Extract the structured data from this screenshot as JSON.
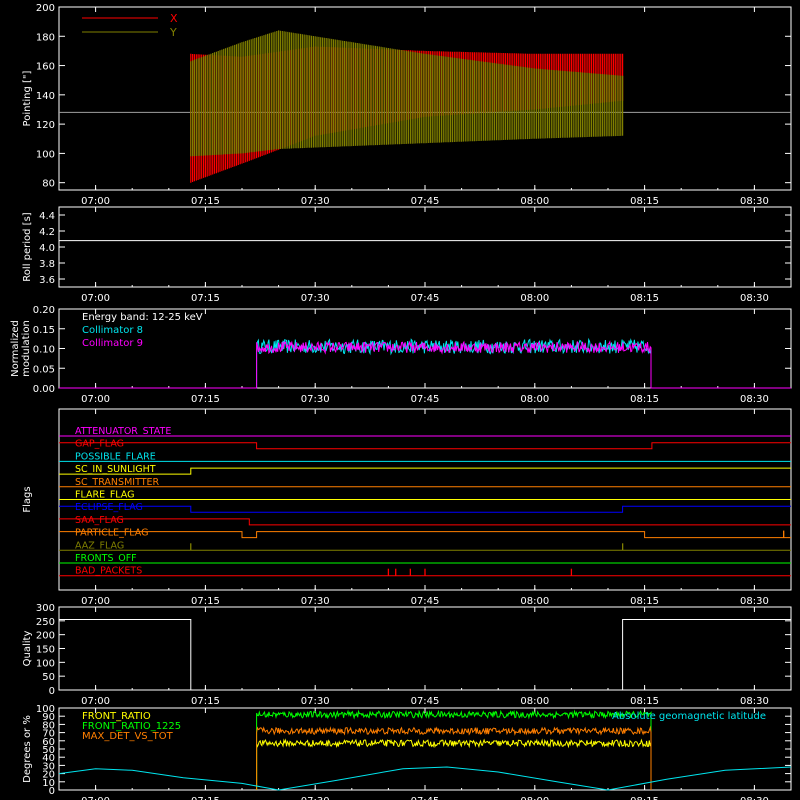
{
  "colors": {
    "white": "#ffffff",
    "red": "#ff0000",
    "olive": "#808000",
    "cyan": "#00e5ee",
    "magenta": "#ff00ff",
    "orange": "#ff7f00",
    "yellow": "#ffff00",
    "green": "#00ff00",
    "blue": "#0000ff",
    "gray": "#a0a0a0"
  },
  "chart_data": [
    {
      "id": "pointing",
      "type": "line",
      "ylabel": "Pointing [\"]",
      "ylim": [
        75,
        200
      ],
      "yticks": [
        80,
        100,
        120,
        140,
        160,
        180,
        200
      ],
      "x_ticks": [
        "07:00",
        "07:15",
        "07:30",
        "07:45",
        "08:00",
        "08:15",
        "08:30"
      ],
      "reference_line": 128,
      "data_start": "07:13",
      "data_end": "08:12",
      "series": [
        {
          "name": "X",
          "color": "red",
          "envelope": [
            {
              "t": "07:13",
              "lo": 80,
              "hi": 168
            },
            {
              "t": "07:20",
              "lo": 93,
              "hi": 166
            },
            {
              "t": "07:30",
              "lo": 112,
              "hi": 173
            },
            {
              "t": "07:45",
              "lo": 125,
              "hi": 170
            },
            {
              "t": "08:00",
              "lo": 130,
              "hi": 168
            },
            {
              "t": "08:12",
              "lo": 136,
              "hi": 168
            }
          ]
        },
        {
          "name": "Y",
          "color": "olive",
          "envelope": [
            {
              "t": "07:13",
              "lo": 98,
              "hi": 163
            },
            {
              "t": "07:20",
              "lo": 100,
              "hi": 176
            },
            {
              "t": "07:25",
              "lo": 103,
              "hi": 184
            },
            {
              "t": "07:45",
              "lo": 107,
              "hi": 168
            },
            {
              "t": "08:00",
              "lo": 110,
              "hi": 158
            },
            {
              "t": "08:12",
              "lo": 112,
              "hi": 153
            }
          ]
        }
      ]
    },
    {
      "id": "roll",
      "type": "line",
      "ylabel": "Roll period [s]",
      "ylim": [
        3.5,
        4.5
      ],
      "yticks": [
        3.6,
        3.8,
        4.0,
        4.2,
        4.4
      ],
      "x_ticks": [
        "07:00",
        "07:15",
        "07:30",
        "07:45",
        "08:00",
        "08:15",
        "08:30"
      ],
      "series": [
        {
          "name": "",
          "color": "white",
          "value": 4.08
        }
      ]
    },
    {
      "id": "modulation",
      "type": "line",
      "ylabel": "Normalized modulation",
      "ylim": [
        0,
        0.2
      ],
      "yticks": [
        0.0,
        0.05,
        0.1,
        0.15,
        0.2
      ],
      "x_ticks": [
        "07:00",
        "07:15",
        "07:30",
        "07:45",
        "08:00",
        "08:15",
        "08:30"
      ],
      "annotation": "Energy band: 12-25 keV",
      "data_start": "07:22",
      "data_end": "08:16",
      "series": [
        {
          "name": "Collimator 8",
          "color": "cyan",
          "mean": 0.105,
          "spread": 0.018
        },
        {
          "name": "Collimator 9",
          "color": "magenta",
          "mean": 0.103,
          "spread": 0.014
        }
      ]
    },
    {
      "id": "flags",
      "type": "line",
      "ylabel": "Flags",
      "x_ticks": [
        "07:00",
        "07:15",
        "07:30",
        "07:45",
        "08:00",
        "08:15",
        "08:30"
      ],
      "series": [
        {
          "name": "ATTENUATOR_STATE",
          "color": "magenta",
          "steps": []
        },
        {
          "name": "GAP_FLAG",
          "color": "red",
          "steps": [
            [
              "07:22",
              0
            ],
            [
              "08:16",
              1
            ]
          ],
          "initial": 1
        },
        {
          "name": "POSSIBLE_FLARE",
          "color": "cyan",
          "steps": []
        },
        {
          "name": "SC_IN_SUNLIGHT",
          "color": "yellow",
          "steps": [
            [
              "07:13",
              1
            ]
          ],
          "initial": 0
        },
        {
          "name": "SC_TRANSMITTER",
          "color": "orange",
          "steps": []
        },
        {
          "name": "FLARE_FLAG",
          "color": "yellow",
          "steps": []
        },
        {
          "name": "ECLIPSE_FLAG",
          "color": "blue",
          "steps": [
            [
              "07:13",
              0
            ],
            [
              "08:12",
              1
            ]
          ],
          "initial": 1
        },
        {
          "name": "SAA_FLAG",
          "color": "red",
          "steps": [
            [
              "07:21",
              0
            ]
          ],
          "initial": 1
        },
        {
          "name": "PARTICLE_FLAG",
          "color": "orange",
          "steps": [
            [
              "07:20",
              0
            ],
            [
              "07:22",
              1
            ],
            [
              "08:15",
              0
            ]
          ],
          "initial": 1,
          "spikes": [
            "08:34"
          ]
        },
        {
          "name": "AAZ_FLAG",
          "color": "olive",
          "steps": [],
          "spikes": [
            "07:13",
            "08:12"
          ]
        },
        {
          "name": "FRONTS_OFF",
          "color": "green",
          "steps": []
        },
        {
          "name": "BAD_PACKETS",
          "color": "red",
          "steps": [],
          "spikes": [
            "07:40",
            "07:41",
            "07:43",
            "07:45",
            "08:05"
          ]
        }
      ]
    },
    {
      "id": "quality",
      "type": "line",
      "ylabel": "Quality",
      "ylim": [
        0,
        300
      ],
      "yticks": [
        0,
        50,
        100,
        150,
        200,
        250,
        300
      ],
      "x_ticks": [
        "07:00",
        "07:15",
        "07:30",
        "07:45",
        "08:00",
        "08:15",
        "08:30"
      ],
      "series": [
        {
          "name": "",
          "color": "white",
          "steps": [
            [
              "06:55",
              255
            ],
            [
              "07:13",
              0
            ],
            [
              "08:12",
              255
            ]
          ]
        }
      ]
    },
    {
      "id": "latitude",
      "type": "line",
      "ylabel": "Degrees or %",
      "ylim": [
        0,
        100
      ],
      "yticks": [
        0,
        10,
        20,
        30,
        40,
        50,
        60,
        70,
        80,
        90,
        100
      ],
      "x_ticks": [
        "07:00",
        "07:15",
        "07:30",
        "07:45",
        "08:00",
        "08:15",
        "08:30"
      ],
      "data_start": "07:22",
      "data_end": "08:16",
      "series": [
        {
          "name": "FRONT_RATIO",
          "color": "yellow",
          "mean": 57
        },
        {
          "name": "FRONT_RATIO_1225",
          "color": "green",
          "mean": 92
        },
        {
          "name": "MAX_DET_VS_TOT",
          "color": "orange",
          "mean": 72
        },
        {
          "name": "Absolute geomagnetic latitude",
          "color": "cyan",
          "points": [
            [
              "06:55",
              20
            ],
            [
              "07:00",
              26
            ],
            [
              "07:05",
              24
            ],
            [
              "07:12",
              15
            ],
            [
              "07:20",
              8
            ],
            [
              "07:25",
              0
            ],
            [
              "07:33",
              12
            ],
            [
              "07:42",
              26
            ],
            [
              "07:48",
              28
            ],
            [
              "07:55",
              22
            ],
            [
              "08:03",
              10
            ],
            [
              "08:10",
              0
            ],
            [
              "08:18",
              13
            ],
            [
              "08:26",
              24
            ],
            [
              "08:35",
              28
            ]
          ]
        }
      ]
    }
  ]
}
